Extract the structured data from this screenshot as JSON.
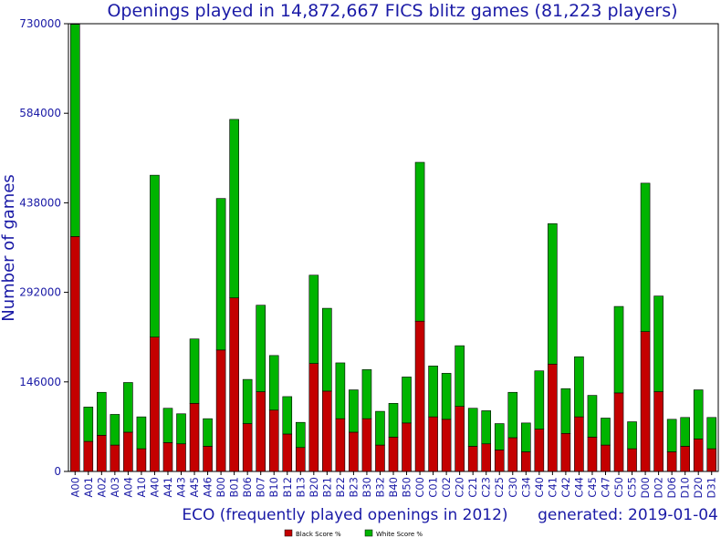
{
  "chart_data": {
    "type": "bar",
    "stacked": true,
    "title": "Openings played in 14,872,667 FICS blitz games (81,223 players)",
    "xlabel": "ECO (frequently played openings in 2012)",
    "ylabel": "Number of games",
    "generated": "generated: 2019-01-04",
    "ylim": [
      0,
      730000
    ],
    "yticks": [
      0,
      146000,
      292000,
      438000,
      584000,
      730000
    ],
    "ytick_labels": [
      "0",
      "146000",
      "292000",
      "438000",
      "584000",
      "730000"
    ],
    "grid": false,
    "legend_position": "bottom-center",
    "colors": {
      "black": "#c40000",
      "white": "#00b400",
      "text": "#1a1aa6",
      "axis": "#000000"
    },
    "categories": [
      "A00",
      "A01",
      "A02",
      "A03",
      "A04",
      "A10",
      "A40",
      "A41",
      "A43",
      "A45",
      "A46",
      "B00",
      "B01",
      "B06",
      "B07",
      "B10",
      "B12",
      "B13",
      "B20",
      "B21",
      "B22",
      "B23",
      "B30",
      "B32",
      "B40",
      "B50",
      "C00",
      "C01",
      "C02",
      "C20",
      "C21",
      "C23",
      "C25",
      "C30",
      "C34",
      "C40",
      "C41",
      "C42",
      "C44",
      "C45",
      "C47",
      "C50",
      "C55",
      "D00",
      "D02",
      "D06",
      "D10",
      "D20",
      "D31"
    ],
    "series": [
      {
        "name": "Black Score %",
        "color": "#c40000",
        "values": [
          383000,
          49000,
          59000,
          43000,
          64000,
          37000,
          219000,
          47000,
          45000,
          111000,
          41000,
          198000,
          283000,
          78000,
          130000,
          100000,
          61000,
          39000,
          176000,
          131000,
          86000,
          64000,
          86000,
          43000,
          56000,
          79000,
          245000,
          89000,
          85000,
          106000,
          41000,
          45000,
          35000,
          55000,
          32000,
          69000,
          175000,
          62000,
          89000,
          56000,
          43000,
          128000,
          37000,
          228000,
          130000,
          32000,
          41000,
          53000,
          37000
        ]
      },
      {
        "name": "White Score %",
        "color": "#00b400",
        "values": [
          346000,
          56000,
          70000,
          50000,
          81000,
          52000,
          264000,
          56000,
          49000,
          105000,
          45000,
          247000,
          291000,
          72000,
          141000,
          89000,
          61000,
          41000,
          144000,
          135000,
          91000,
          69000,
          80000,
          55000,
          55000,
          75000,
          259000,
          83000,
          75000,
          99000,
          62000,
          54000,
          43000,
          74000,
          47000,
          95000,
          229000,
          73000,
          98000,
          68000,
          44000,
          141000,
          44000,
          242000,
          156000,
          53000,
          47000,
          80000,
          51000
        ]
      }
    ]
  }
}
